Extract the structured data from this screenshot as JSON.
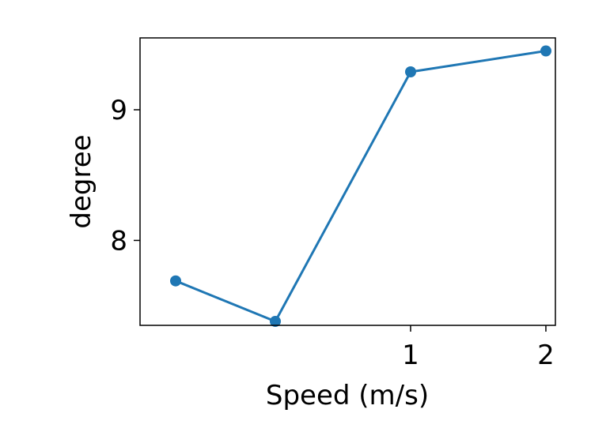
{
  "chart_data": {
    "type": "line",
    "title": "",
    "xlabel": "Speed (m/s)",
    "ylabel": "degree",
    "x_scale": "log",
    "xlim": [
      0.25,
      2.1
    ],
    "ylim": [
      7.35,
      9.55
    ],
    "x_ticks": [
      {
        "value": 1,
        "label": "1"
      },
      {
        "value": 2,
        "label": "2"
      }
    ],
    "y_ticks": [
      {
        "value": 8,
        "label": "8"
      },
      {
        "value": 9,
        "label": "9"
      }
    ],
    "grid": false,
    "legend": "none",
    "series": [
      {
        "color": "#1f77b4",
        "marker": "circle",
        "x": [
          0.3,
          0.5,
          1.0,
          2.0
        ],
        "y": [
          7.69,
          7.38,
          9.29,
          9.45
        ]
      }
    ]
  }
}
